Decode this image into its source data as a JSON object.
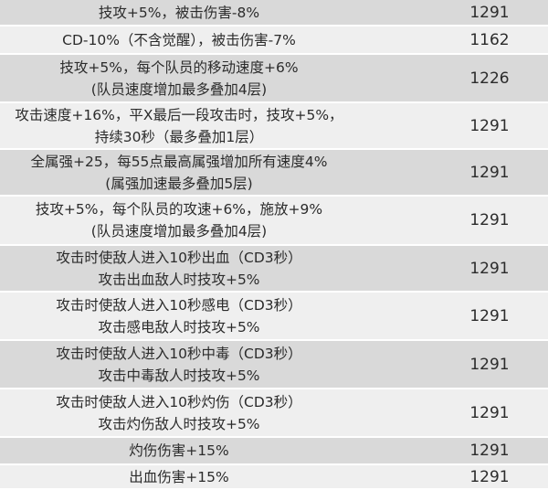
{
  "rows": [
    {
      "lines": [
        "技攻+5%，被击伤害-8%"
      ],
      "value": "1291"
    },
    {
      "lines": [
        "CD-10%（不含觉醒），被击伤害-7%"
      ],
      "value": "1162"
    },
    {
      "lines": [
        "技攻+5%，每个队员的移动速度+6%",
        "(队员速度增加最多叠加4层)"
      ],
      "value": "1226"
    },
    {
      "lines": [
        "攻击速度+16%，平X最后一段攻击时，技攻+5%，",
        "持续30秒（最多叠加1层）"
      ],
      "value": "1291"
    },
    {
      "lines": [
        "全属强+25，每55点最高属强增加所有速度4%",
        "(属强加速最多叠加5层)"
      ],
      "value": "1291"
    },
    {
      "lines": [
        "技攻+5%，每个队员的攻速+6%，施放+9%",
        "(队员速度增加最多叠加4层)"
      ],
      "value": "1291"
    },
    {
      "lines": [
        "攻击时使敌人进入10秒出血（CD3秒）",
        "攻击出血敌人时技攻+5%"
      ],
      "value": "1291"
    },
    {
      "lines": [
        "攻击时使敌人进入10秒感电（CD3秒）",
        "攻击感电敌人时技攻+5%"
      ],
      "value": "1291"
    },
    {
      "lines": [
        "攻击时使敌人进入10秒中毒（CD3秒）",
        "攻击中毒敌人时技攻+5%"
      ],
      "value": "1291"
    },
    {
      "lines": [
        "攻击时使敌人进入10秒灼伤（CD3秒）",
        "攻击灼伤敌人时技攻+5%"
      ],
      "value": "1291"
    },
    {
      "lines": [
        "灼伤伤害+15%"
      ],
      "value": "1291"
    },
    {
      "lines": [
        "出血伤害+15%"
      ],
      "value": "1291"
    }
  ],
  "colors": {
    "row_dark": "#d9d9d9",
    "row_light": "#efefef",
    "separator": "#ffffff"
  }
}
